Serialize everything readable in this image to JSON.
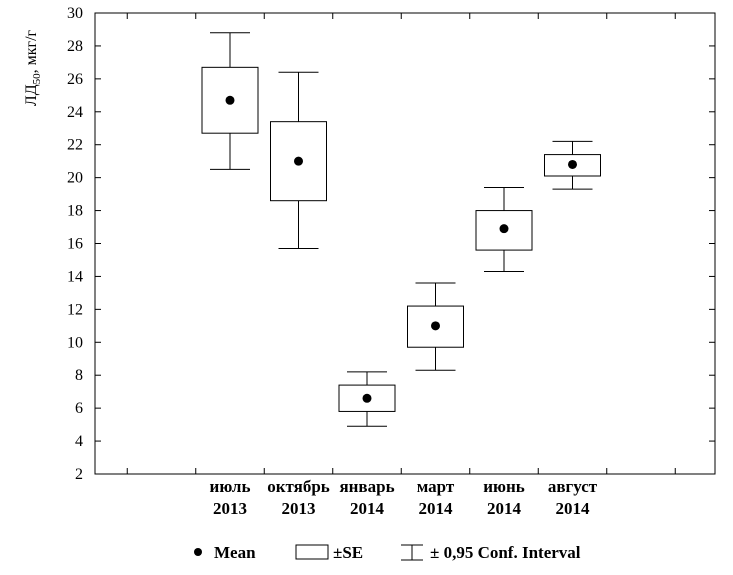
{
  "chart_data": {
    "type": "box",
    "ylabel_main": "ЛД",
    "ylabel_sub": "50",
    "ylabel_unit": ", мкг/г",
    "ylim": [
      2,
      30
    ],
    "yticks": [
      2,
      4,
      6,
      8,
      10,
      12,
      14,
      16,
      18,
      20,
      22,
      24,
      26,
      28,
      30
    ],
    "grid": false,
    "categories": [
      {
        "line1": "июль",
        "line2": "2013"
      },
      {
        "line1": "октябрь",
        "line2": "2013"
      },
      {
        "line1": "январь",
        "line2": "2014"
      },
      {
        "line1": "март",
        "line2": "2014"
      },
      {
        "line1": "июнь",
        "line2": "2014"
      },
      {
        "line1": "август",
        "line2": "2014"
      }
    ],
    "series": [
      {
        "mean": 24.7,
        "se_low": 22.7,
        "se_high": 26.7,
        "ci_low": 20.5,
        "ci_high": 28.8
      },
      {
        "mean": 21.0,
        "se_low": 18.6,
        "se_high": 23.4,
        "ci_low": 15.7,
        "ci_high": 26.4
      },
      {
        "mean": 6.6,
        "se_low": 5.8,
        "se_high": 7.4,
        "ci_low": 4.9,
        "ci_high": 8.2
      },
      {
        "mean": 11.0,
        "se_low": 9.7,
        "se_high": 12.2,
        "ci_low": 8.3,
        "ci_high": 13.6
      },
      {
        "mean": 16.9,
        "se_low": 15.6,
        "se_high": 18.0,
        "ci_low": 14.3,
        "ci_high": 19.4
      },
      {
        "mean": 20.8,
        "se_low": 20.1,
        "se_high": 21.4,
        "ci_low": 19.3,
        "ci_high": 22.2
      }
    ],
    "legend": {
      "placement": "bottom",
      "mean_label": "Mean",
      "se_label": "±SE",
      "ci_label": "± 0,95 Conf. Interval"
    }
  }
}
